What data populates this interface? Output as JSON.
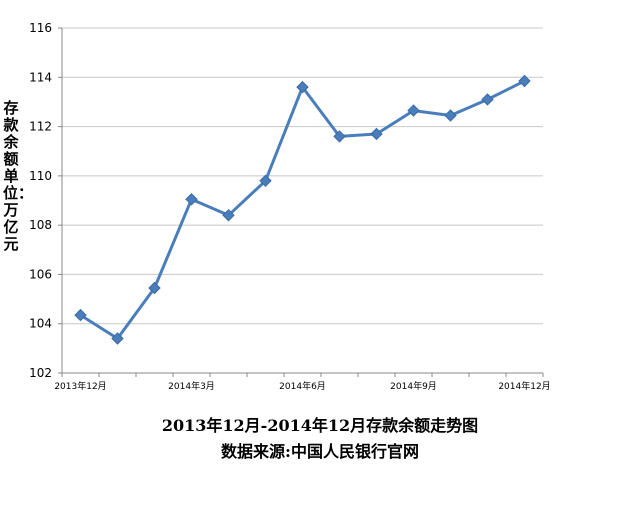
{
  "chart_data": {
    "type": "line",
    "title": "",
    "xlabel": "",
    "ylabel": "存款余额单位：万亿元",
    "ylim": [
      102,
      116
    ],
    "yticks": [
      102,
      104,
      106,
      108,
      110,
      112,
      114,
      116
    ],
    "x_tick_labels": [
      {
        "index": 0,
        "label": "2013年12月"
      },
      {
        "index": 3,
        "label": "2014年3月"
      },
      {
        "index": 6,
        "label": "2014年6月"
      },
      {
        "index": 9,
        "label": "2014年9月"
      },
      {
        "index": 12,
        "label": "2014年12月"
      }
    ],
    "series": [
      {
        "values": [
          104.35,
          103.4,
          105.45,
          109.05,
          108.4,
          109.8,
          113.6,
          111.6,
          111.7,
          112.65,
          112.45,
          113.1,
          113.85
        ]
      }
    ],
    "grid": true,
    "legend": "none",
    "line_color": "#4a7ebb",
    "marker_color": "#4a7ebb"
  },
  "captions": {
    "line1": "2013年12月-2014年12月存款余额走势图",
    "line2": "数据来源:中国人民银行官网"
  }
}
